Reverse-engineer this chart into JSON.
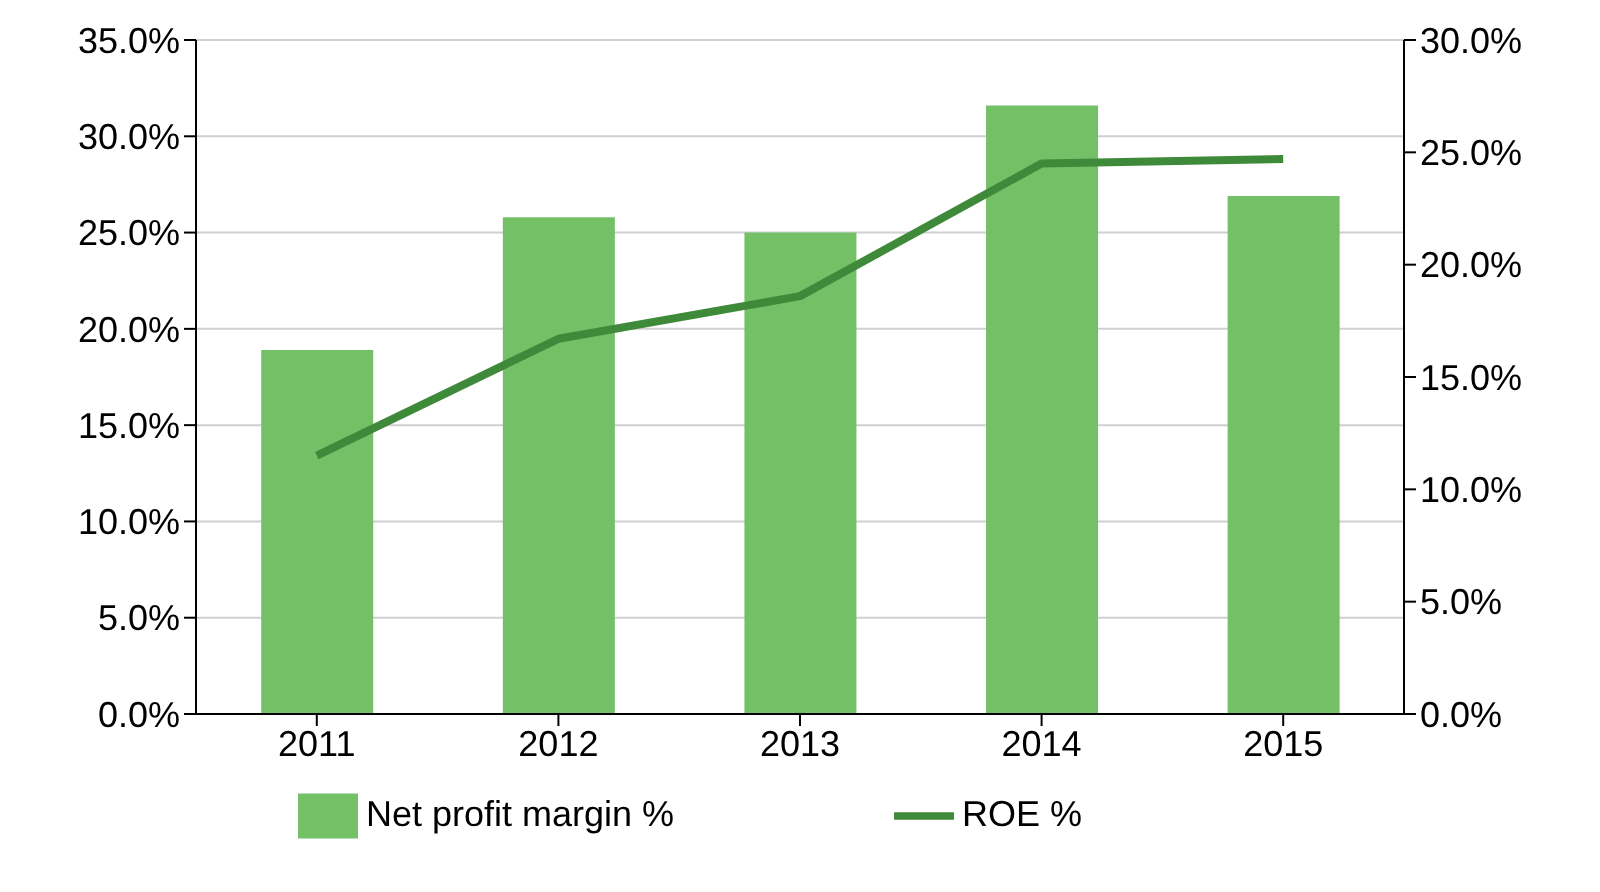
{
  "chart_data": {
    "type": "bar",
    "categories": [
      "2011",
      "2012",
      "2013",
      "2014",
      "2015"
    ],
    "series": [
      {
        "name": "Net profit margin %",
        "color": "#73c067",
        "values": [
          18.9,
          25.8,
          25.0,
          31.6,
          26.9
        ]
      },
      {
        "name": "ROE %",
        "type": "line",
        "axis": "y2",
        "color": "#3f8a3a",
        "values": [
          11.5,
          16.7,
          18.6,
          24.5,
          24.7
        ]
      }
    ],
    "ylim": [
      0,
      35
    ],
    "yticks": [
      {
        "value": 0,
        "label": "0.0%"
      },
      {
        "value": 5,
        "label": "5.0%"
      },
      {
        "value": 10,
        "label": "10.0%"
      },
      {
        "value": 15,
        "label": "15.0%"
      },
      {
        "value": 20,
        "label": "20.0%"
      },
      {
        "value": 25,
        "label": "25.0%"
      },
      {
        "value": 30,
        "label": "30.0%"
      },
      {
        "value": 35,
        "label": "35.0%"
      }
    ],
    "y2lim": [
      0,
      30
    ],
    "y2ticks": [
      {
        "value": 0,
        "label": "0.0%"
      },
      {
        "value": 5,
        "label": "5.0%"
      },
      {
        "value": 10,
        "label": "10.0%"
      },
      {
        "value": 15,
        "label": "15.0%"
      },
      {
        "value": 20,
        "label": "20.0%"
      },
      {
        "value": 25,
        "label": "25.0%"
      },
      {
        "value": 30,
        "label": "30.0%"
      }
    ],
    "grid": "y",
    "legend": "bottom",
    "marker": "none",
    "line_style": "solid"
  }
}
